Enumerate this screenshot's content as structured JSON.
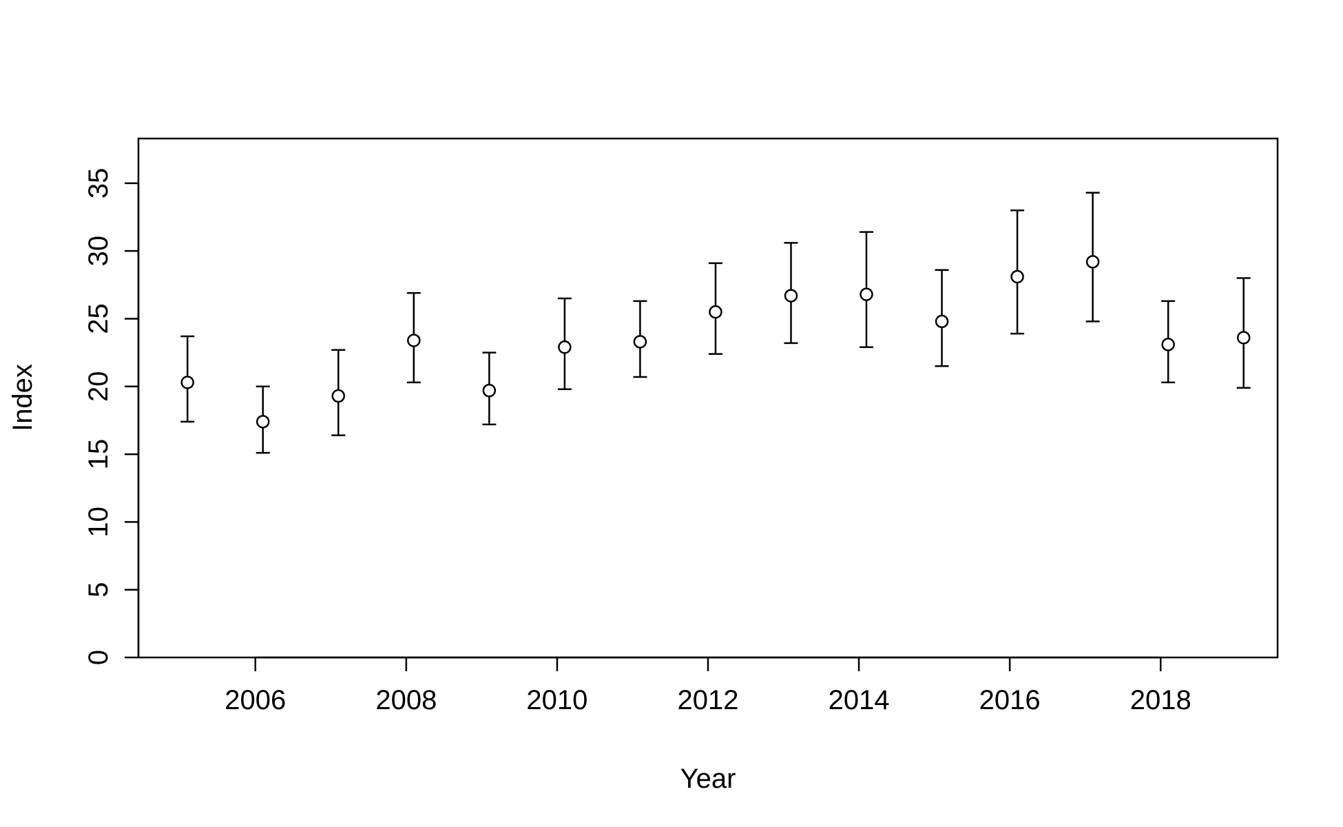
{
  "chart_data": {
    "type": "scatter",
    "xlabel": "Year",
    "ylabel": "Index",
    "xlim": [
      2004.45,
      2019.55
    ],
    "ylim": [
      0,
      38.3
    ],
    "x_ticks": [
      2006,
      2008,
      2010,
      2012,
      2014,
      2016,
      2018
    ],
    "x_tick_labels": [
      "2006",
      "2008",
      "2010",
      "2012",
      "2014",
      "2016",
      "2018"
    ],
    "y_ticks": [
      0,
      5,
      10,
      15,
      20,
      25,
      30,
      35
    ],
    "y_tick_labels": [
      "0",
      "5",
      "10",
      "15",
      "20",
      "25",
      "30",
      "35"
    ],
    "grid": false,
    "series": [
      {
        "marker": "open-circle",
        "error_bars": true,
        "points": [
          {
            "x": 2005.1,
            "y": 20.3,
            "lower": 17.4,
            "upper": 23.7
          },
          {
            "x": 2006.1,
            "y": 17.4,
            "lower": 15.1,
            "upper": 20.0
          },
          {
            "x": 2007.1,
            "y": 19.3,
            "lower": 16.4,
            "upper": 22.7
          },
          {
            "x": 2008.1,
            "y": 23.4,
            "lower": 20.3,
            "upper": 26.9
          },
          {
            "x": 2009.1,
            "y": 19.7,
            "lower": 17.2,
            "upper": 22.5
          },
          {
            "x": 2010.1,
            "y": 22.9,
            "lower": 19.8,
            "upper": 26.5
          },
          {
            "x": 2011.1,
            "y": 23.3,
            "lower": 20.7,
            "upper": 26.3
          },
          {
            "x": 2012.1,
            "y": 25.5,
            "lower": 22.4,
            "upper": 29.1
          },
          {
            "x": 2013.1,
            "y": 26.7,
            "lower": 23.2,
            "upper": 30.6
          },
          {
            "x": 2014.1,
            "y": 26.8,
            "lower": 22.9,
            "upper": 31.4
          },
          {
            "x": 2015.1,
            "y": 24.8,
            "lower": 21.5,
            "upper": 28.6
          },
          {
            "x": 2016.1,
            "y": 28.1,
            "lower": 23.9,
            "upper": 33.0
          },
          {
            "x": 2017.1,
            "y": 29.2,
            "lower": 24.8,
            "upper": 34.3
          },
          {
            "x": 2018.1,
            "y": 23.1,
            "lower": 20.3,
            "upper": 26.3
          },
          {
            "x": 2019.1,
            "y": 23.6,
            "lower": 19.9,
            "upper": 28.0
          }
        ]
      }
    ],
    "colors": {
      "axis": "#000000",
      "marker_fill": "#ffffff",
      "marker_stroke": "#000000"
    }
  }
}
